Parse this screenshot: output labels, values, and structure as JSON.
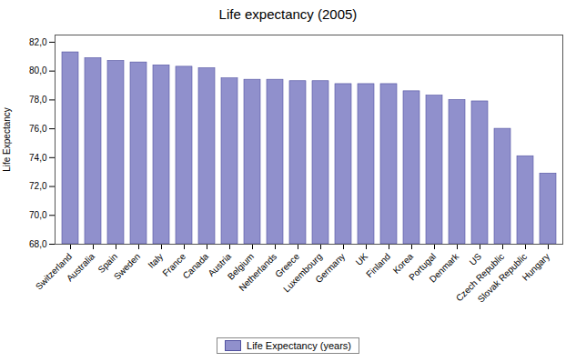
{
  "chart_data": {
    "type": "bar",
    "title": "Life expectancy (2005)",
    "ylabel": "Life Expectancy",
    "categories": [
      "Switzerland",
      "Australia",
      "Spain",
      "Sweden",
      "Italy",
      "France",
      "Canada",
      "Austria",
      "Belgium",
      "Netherlands",
      "Greece",
      "Luxembourg",
      "Germany",
      "UK",
      "Finland",
      "Korea",
      "Portugal",
      "Denmark",
      "US",
      "Czech Republic",
      "Slovak Republic",
      "Hungary"
    ],
    "series": [
      {
        "name": "Life Expectancy (years)",
        "color": "#9090cc",
        "values": [
          81.3,
          80.9,
          80.7,
          80.6,
          80.4,
          80.3,
          80.2,
          79.5,
          79.4,
          79.4,
          79.3,
          79.3,
          79.1,
          79.1,
          79.1,
          78.6,
          78.3,
          78.0,
          77.9,
          76.0,
          74.1,
          72.9
        ]
      }
    ],
    "ylim": [
      68.0,
      82.5
    ],
    "yticks": [
      {
        "value": 68.0,
        "label": "68,0"
      },
      {
        "value": 70.0,
        "label": "70,0"
      },
      {
        "value": 72.0,
        "label": "72,0"
      },
      {
        "value": 74.0,
        "label": "74,0"
      },
      {
        "value": 76.0,
        "label": "76,0"
      },
      {
        "value": 78.0,
        "label": "78,0"
      },
      {
        "value": 80.0,
        "label": "80,0"
      },
      {
        "value": 82.0,
        "label": "82,0"
      }
    ],
    "grid": false,
    "legend": "bottom"
  }
}
